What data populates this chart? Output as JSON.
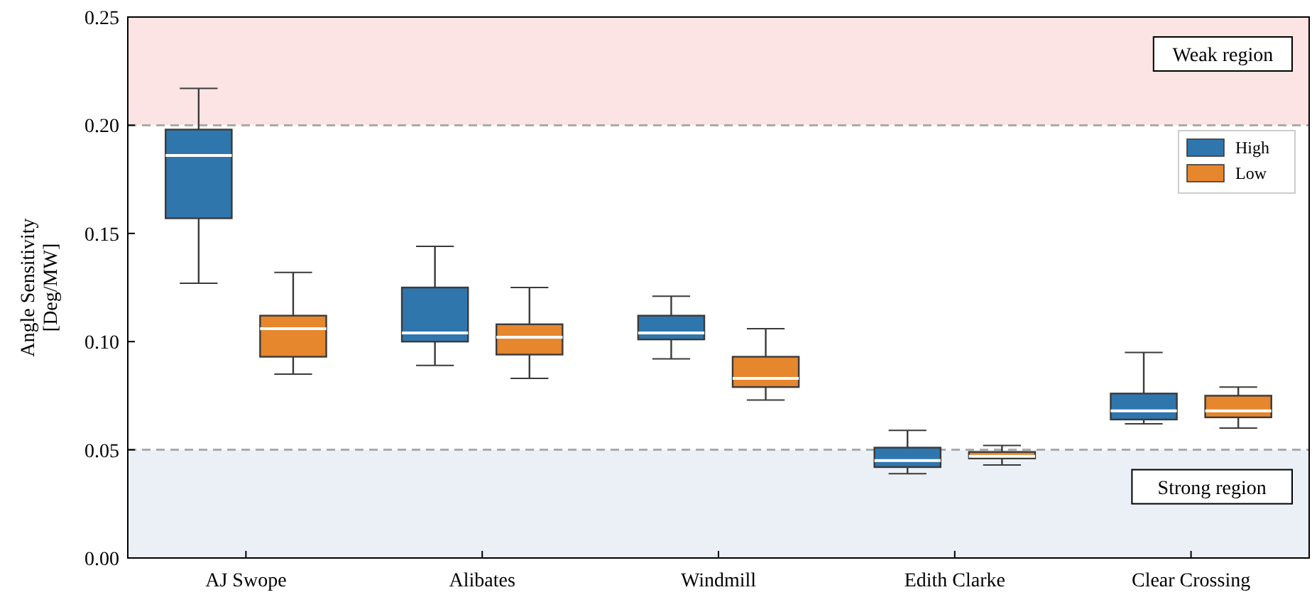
{
  "chart_data": {
    "type": "box",
    "ylabel": "Angle Sensitivity\n[Deg/MW]",
    "categories": [
      "AJ Swope",
      "Alibates",
      "Windmill",
      "Edith Clarke",
      "Clear Crossing"
    ],
    "series": [
      {
        "name": "High",
        "color": "#2f76ad",
        "boxes": [
          {
            "low": 0.127,
            "q1": 0.157,
            "median": 0.186,
            "q3": 0.198,
            "high": 0.217
          },
          {
            "low": 0.089,
            "q1": 0.1,
            "median": 0.104,
            "q3": 0.125,
            "high": 0.144
          },
          {
            "low": 0.092,
            "q1": 0.101,
            "median": 0.104,
            "q3": 0.112,
            "high": 0.121
          },
          {
            "low": 0.039,
            "q1": 0.042,
            "median": 0.045,
            "q3": 0.051,
            "high": 0.059
          },
          {
            "low": 0.062,
            "q1": 0.064,
            "median": 0.068,
            "q3": 0.076,
            "high": 0.095
          }
        ]
      },
      {
        "name": "Low",
        "color": "#e6862d",
        "boxes": [
          {
            "low": 0.085,
            "q1": 0.093,
            "median": 0.106,
            "q3": 0.112,
            "high": 0.132
          },
          {
            "low": 0.083,
            "q1": 0.094,
            "median": 0.102,
            "q3": 0.108,
            "high": 0.125
          },
          {
            "low": 0.073,
            "q1": 0.079,
            "median": 0.083,
            "q3": 0.093,
            "high": 0.106
          },
          {
            "low": 0.043,
            "q1": 0.046,
            "median": 0.047,
            "q3": 0.049,
            "high": 0.052
          },
          {
            "low": 0.06,
            "q1": 0.065,
            "median": 0.068,
            "q3": 0.075,
            "high": 0.079
          }
        ]
      }
    ],
    "ylim": [
      0,
      0.25
    ],
    "yticks": [
      {
        "value": 0,
        "label": "0.00"
      },
      {
        "value": 0.05,
        "label": "0.05"
      },
      {
        "value": 0.1,
        "label": "0.10"
      },
      {
        "value": 0.15,
        "label": "0.15"
      },
      {
        "value": 0.2,
        "label": "0.20"
      },
      {
        "value": 0.25,
        "label": "0.25"
      }
    ],
    "bands": [
      {
        "axis": "y",
        "from": 0.2,
        "to": 0.25,
        "label": "Weak region",
        "color": "#fde4e4"
      },
      {
        "axis": "y",
        "from": 0,
        "to": 0.05,
        "label": "Strong region",
        "color": "#ebeff6"
      }
    ],
    "ref_lines": [
      {
        "axis": "y",
        "value": 0.2,
        "color": "#aaaaaa",
        "line_style": "dashed"
      },
      {
        "axis": "y",
        "value": 0.05,
        "color": "#aaaaaa",
        "line_style": "dashed"
      }
    ],
    "legend": "top right",
    "grid": false
  }
}
